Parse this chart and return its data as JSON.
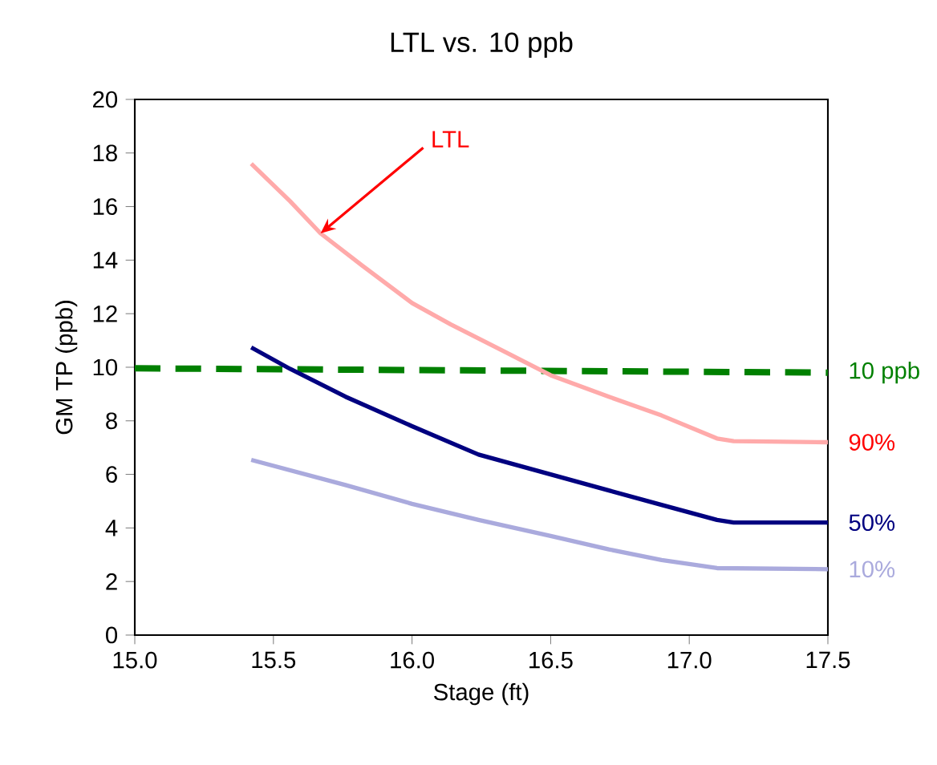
{
  "chart_data": {
    "type": "line",
    "title": "LTL  vs.  10 ppb",
    "xlabel": "Stage (ft)",
    "ylabel": "GM TP (ppb)",
    "xlim": [
      15.0,
      17.5
    ],
    "ylim": [
      0,
      20
    ],
    "xticks": [
      {
        "value": 15.0,
        "label": "15.0"
      },
      {
        "value": 15.5,
        "label": "15.5"
      },
      {
        "value": 16.0,
        "label": "16.0"
      },
      {
        "value": 16.5,
        "label": "16.5"
      },
      {
        "value": 17.0,
        "label": "17.0"
      },
      {
        "value": 17.5,
        "label": "17.5"
      }
    ],
    "yticks": [
      0,
      2,
      4,
      6,
      8,
      10,
      12,
      14,
      16,
      18,
      20
    ],
    "grid": false,
    "legend": false,
    "marker": "none",
    "series": [
      {
        "name": "10 ppb",
        "color": "#008000",
        "line_style": "dashed",
        "x": [
          15.0,
          17.5
        ],
        "values": [
          9.96,
          9.8
        ]
      },
      {
        "name": "90%",
        "color": "#ffaaaa",
        "line_style": "solid",
        "x": [
          15.42,
          15.56,
          15.67,
          15.82,
          16.0,
          16.14,
          16.33,
          16.5,
          16.71,
          16.9,
          17.1,
          17.16,
          17.5
        ],
        "values": [
          17.6,
          16.2,
          15.0,
          13.8,
          12.4,
          11.6,
          10.6,
          9.7,
          8.9,
          8.2,
          7.34,
          7.24,
          7.2
        ]
      },
      {
        "name": "50%",
        "color": "#000080",
        "line_style": "solid",
        "x": [
          15.42,
          15.56,
          15.76,
          16.0,
          16.24,
          16.5,
          16.71,
          16.9,
          17.1,
          17.16,
          17.5
        ],
        "values": [
          10.74,
          9.94,
          8.9,
          7.8,
          6.74,
          6.0,
          5.4,
          4.86,
          4.3,
          4.2,
          4.2
        ]
      },
      {
        "name": "10%",
        "color": "#aaaadd",
        "line_style": "solid",
        "x": [
          15.42,
          15.76,
          16.0,
          16.24,
          16.5,
          16.71,
          16.9,
          17.1,
          17.5
        ],
        "values": [
          6.54,
          5.6,
          4.9,
          4.3,
          3.7,
          3.2,
          2.8,
          2.5,
          2.46
        ]
      }
    ],
    "annotations": [
      {
        "text": "LTL",
        "x": 15.67,
        "y": 15.0
      }
    ]
  }
}
